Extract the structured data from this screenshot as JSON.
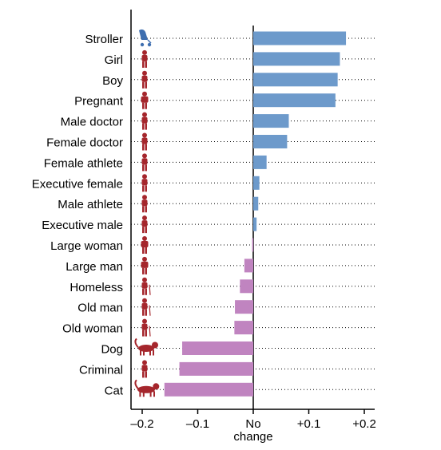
{
  "chart_data": {
    "type": "bar",
    "orientation": "horizontal",
    "categories": [
      "Stroller",
      "Girl",
      "Boy",
      "Pregnant",
      "Male doctor",
      "Female doctor",
      "Female athlete",
      "Executive female",
      "Male athlete",
      "Executive male",
      "Large woman",
      "Large man",
      "Homeless",
      "Old man",
      "Old woman",
      "Dog",
      "Criminal",
      "Cat"
    ],
    "values": [
      0.167,
      0.156,
      0.152,
      0.148,
      0.064,
      0.061,
      0.024,
      0.011,
      0.009,
      0.006,
      -0.002,
      -0.016,
      -0.024,
      -0.033,
      -0.034,
      -0.128,
      -0.133,
      -0.16
    ],
    "icons": [
      "stroller-icon",
      "girl-icon",
      "boy-icon",
      "pregnant-woman-icon",
      "male-doctor-icon",
      "female-doctor-icon",
      "female-athlete-icon",
      "executive-female-icon",
      "male-athlete-icon",
      "executive-male-icon",
      "large-woman-icon",
      "large-man-icon",
      "homeless-icon",
      "old-man-icon",
      "old-woman-icon",
      "dog-icon",
      "criminal-icon",
      "cat-icon"
    ],
    "xlim": [
      -0.22,
      0.22
    ],
    "xticks": [
      -0.2,
      -0.1,
      0,
      0.1,
      0.2
    ],
    "xtick_labels": [
      "–0.2",
      "–0.1",
      "No\nchange",
      "+0.1",
      "+0.2"
    ],
    "grid": "dotted lines from labels to right edge",
    "colors": {
      "positive": "#6d9acb",
      "negative": "#c084c0",
      "icon": "#a5262c",
      "stroller_icon": "#3f6fb0"
    }
  }
}
